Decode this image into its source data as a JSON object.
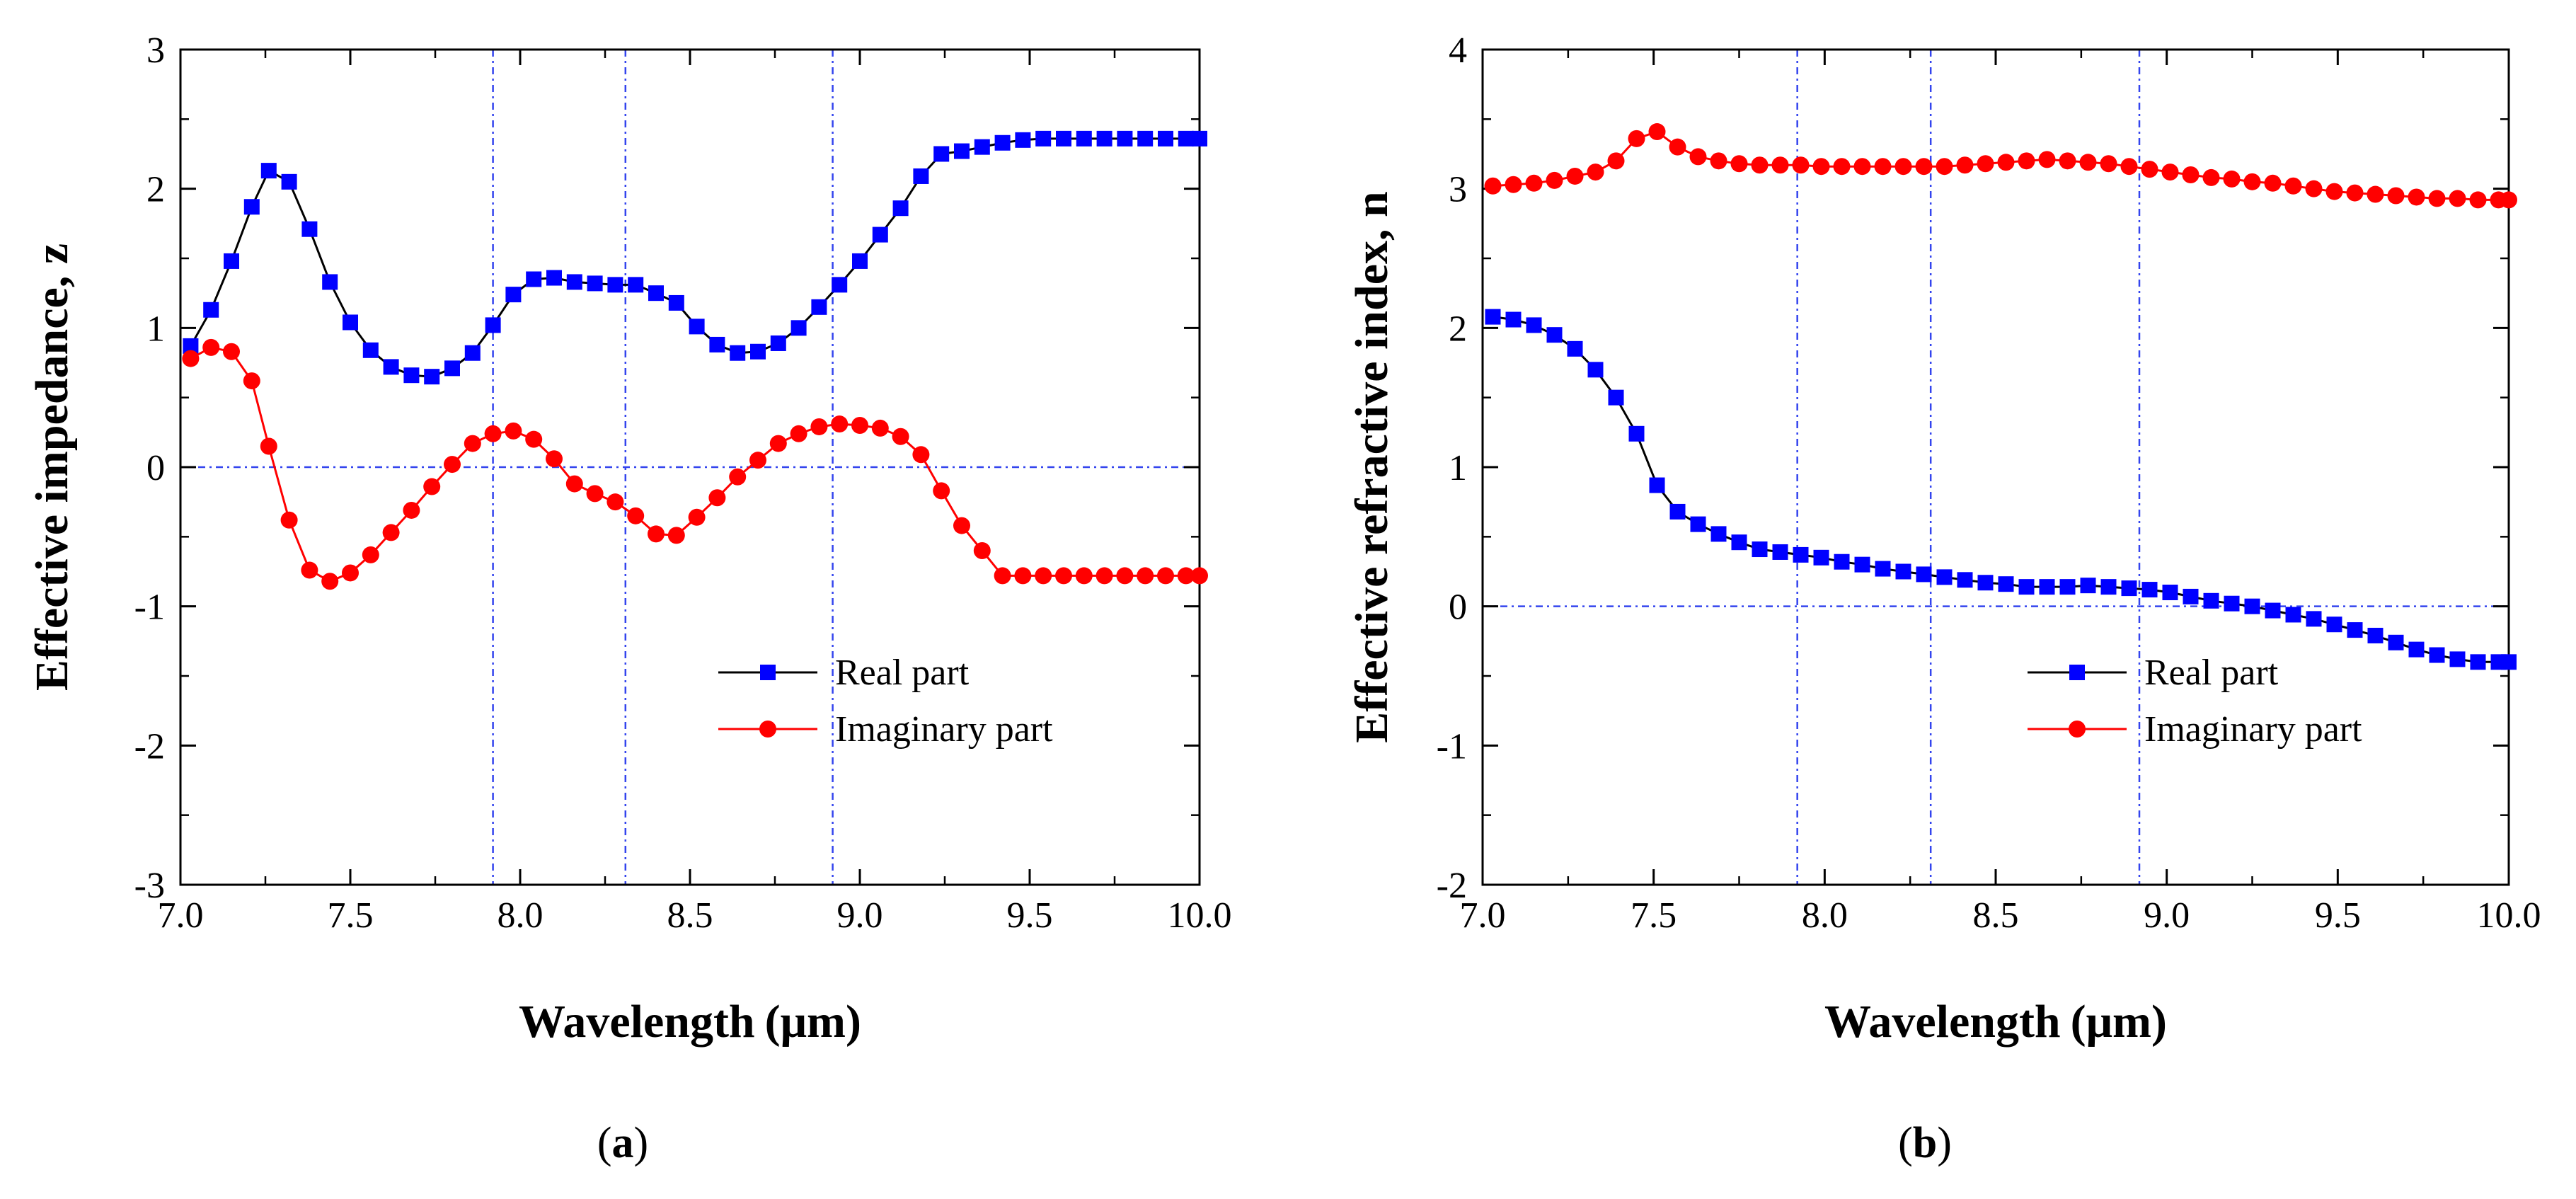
{
  "chart_data": [
    {
      "type": "line",
      "panel_label": "a",
      "xlabel_text": "Wavelength",
      "xlabel_unit": "(μm)",
      "ylabel": "Effective impedance, z",
      "xlim": [
        7.0,
        10.0
      ],
      "ylim": [
        -3,
        3
      ],
      "xticks": [
        "7.0",
        "7.5",
        "8.0",
        "8.5",
        "9.0",
        "9.5",
        "10.0"
      ],
      "xtick_values": [
        7.0,
        7.5,
        8.0,
        8.5,
        9.0,
        9.5,
        10.0
      ],
      "yticks": [
        "-3",
        "-2",
        "-1",
        "0",
        "1",
        "2",
        "3"
      ],
      "ytick_values": [
        -3,
        -2,
        -1,
        0,
        1,
        2,
        3
      ],
      "reference_vlines": [
        7.92,
        8.31,
        8.92
      ],
      "reference_hline": 0,
      "legend_position": "lower-right",
      "series": [
        {
          "name": "Real part",
          "color": "#0000ff",
          "line_color": "#000000",
          "marker": "square",
          "x": [
            7.03,
            7.09,
            7.15,
            7.21,
            7.26,
            7.32,
            7.38,
            7.44,
            7.5,
            7.56,
            7.62,
            7.68,
            7.74,
            7.8,
            7.86,
            7.92,
            7.98,
            8.04,
            8.1,
            8.16,
            8.22,
            8.28,
            8.34,
            8.4,
            8.46,
            8.52,
            8.58,
            8.64,
            8.7,
            8.76,
            8.82,
            8.88,
            8.94,
            9.0,
            9.06,
            9.12,
            9.18,
            9.24,
            9.3,
            9.36,
            9.42,
            9.48,
            9.54,
            9.6,
            9.66,
            9.72,
            9.78,
            9.84,
            9.9,
            9.96,
            10.0
          ],
          "y": [
            0.87,
            1.13,
            1.48,
            1.87,
            2.13,
            2.05,
            1.71,
            1.33,
            1.04,
            0.84,
            0.72,
            0.66,
            0.65,
            0.71,
            0.82,
            1.02,
            1.24,
            1.35,
            1.36,
            1.33,
            1.32,
            1.31,
            1.31,
            1.25,
            1.18,
            1.01,
            0.88,
            0.82,
            0.83,
            0.89,
            1.0,
            1.15,
            1.31,
            1.48,
            1.67,
            1.86,
            2.09,
            2.25,
            2.27,
            2.3,
            2.33,
            2.35,
            2.36,
            2.36,
            2.36,
            2.36,
            2.36,
            2.36,
            2.36,
            2.36,
            2.36
          ]
        },
        {
          "name": "Imaginary part",
          "color": "#ff0000",
          "line_color": "#ff0000",
          "marker": "circle",
          "x": [
            7.03,
            7.09,
            7.15,
            7.21,
            7.26,
            7.32,
            7.38,
            7.44,
            7.5,
            7.56,
            7.62,
            7.68,
            7.74,
            7.8,
            7.86,
            7.92,
            7.98,
            8.04,
            8.1,
            8.16,
            8.22,
            8.28,
            8.34,
            8.4,
            8.46,
            8.52,
            8.58,
            8.64,
            8.7,
            8.76,
            8.82,
            8.88,
            8.94,
            9.0,
            9.06,
            9.12,
            9.18,
            9.24,
            9.3,
            9.36,
            9.42,
            9.48,
            9.54,
            9.6,
            9.66,
            9.72,
            9.78,
            9.84,
            9.9,
            9.96,
            10.0
          ],
          "y": [
            0.78,
            0.86,
            0.83,
            0.62,
            0.15,
            -0.38,
            -0.74,
            -0.82,
            -0.76,
            -0.63,
            -0.47,
            -0.31,
            -0.14,
            0.02,
            0.17,
            0.24,
            0.26,
            0.2,
            0.06,
            -0.12,
            -0.19,
            -0.25,
            -0.35,
            -0.48,
            -0.49,
            -0.36,
            -0.22,
            -0.07,
            0.05,
            0.17,
            0.24,
            0.29,
            0.31,
            0.3,
            0.28,
            0.22,
            0.09,
            -0.17,
            -0.42,
            -0.6,
            -0.78,
            -0.78,
            -0.78,
            -0.78,
            -0.78,
            -0.78,
            -0.78,
            -0.78,
            -0.78,
            -0.78,
            -0.78
          ]
        }
      ]
    },
    {
      "type": "line",
      "panel_label": "b",
      "xlabel_text": "Wavelength",
      "xlabel_unit": "(μm)",
      "ylabel": "Effective refractive index, n",
      "xlim": [
        7.0,
        10.0
      ],
      "ylim": [
        -2,
        4
      ],
      "xticks": [
        "7.0",
        "7.5",
        "8.0",
        "8.5",
        "9.0",
        "9.5",
        "10.0"
      ],
      "xtick_values": [
        7.0,
        7.5,
        8.0,
        8.5,
        9.0,
        9.5,
        10.0
      ],
      "yticks": [
        "-2",
        "-1",
        "0",
        "1",
        "2",
        "3",
        "4"
      ],
      "ytick_values": [
        -2,
        -1,
        0,
        1,
        2,
        3,
        4
      ],
      "reference_vlines": [
        7.92,
        8.31,
        8.92
      ],
      "reference_hline": 0,
      "legend_position": "lower-right",
      "series": [
        {
          "name": "Real part",
          "color": "#0000ff",
          "line_color": "#000000",
          "marker": "square",
          "x": [
            7.03,
            7.09,
            7.15,
            7.21,
            7.27,
            7.33,
            7.39,
            7.45,
            7.51,
            7.57,
            7.63,
            7.69,
            7.75,
            7.81,
            7.87,
            7.93,
            7.99,
            8.05,
            8.11,
            8.17,
            8.23,
            8.29,
            8.35,
            8.41,
            8.47,
            8.53,
            8.59,
            8.65,
            8.71,
            8.77,
            8.83,
            8.89,
            8.95,
            9.01,
            9.07,
            9.13,
            9.19,
            9.25,
            9.31,
            9.37,
            9.43,
            9.49,
            9.55,
            9.61,
            9.67,
            9.73,
            9.79,
            9.85,
            9.91,
            9.97,
            10.0
          ],
          "y": [
            2.08,
            2.06,
            2.02,
            1.95,
            1.85,
            1.7,
            1.5,
            1.24,
            0.87,
            0.68,
            0.59,
            0.52,
            0.46,
            0.41,
            0.39,
            0.37,
            0.35,
            0.32,
            0.3,
            0.27,
            0.25,
            0.23,
            0.21,
            0.19,
            0.17,
            0.16,
            0.14,
            0.14,
            0.14,
            0.15,
            0.14,
            0.13,
            0.12,
            0.1,
            0.07,
            0.04,
            0.02,
            0.0,
            -0.03,
            -0.06,
            -0.09,
            -0.13,
            -0.17,
            -0.21,
            -0.26,
            -0.31,
            -0.35,
            -0.38,
            -0.4,
            -0.4,
            -0.4
          ]
        },
        {
          "name": "Imaginary part",
          "color": "#ff0000",
          "line_color": "#ff0000",
          "marker": "circle",
          "x": [
            7.03,
            7.09,
            7.15,
            7.21,
            7.27,
            7.33,
            7.39,
            7.45,
            7.51,
            7.57,
            7.63,
            7.69,
            7.75,
            7.81,
            7.87,
            7.93,
            7.99,
            8.05,
            8.11,
            8.17,
            8.23,
            8.29,
            8.35,
            8.41,
            8.47,
            8.53,
            8.59,
            8.65,
            8.71,
            8.77,
            8.83,
            8.89,
            8.95,
            9.01,
            9.07,
            9.13,
            9.19,
            9.25,
            9.31,
            9.37,
            9.43,
            9.49,
            9.55,
            9.61,
            9.67,
            9.73,
            9.79,
            9.85,
            9.91,
            9.97,
            10.0
          ],
          "y": [
            3.02,
            3.03,
            3.04,
            3.06,
            3.09,
            3.12,
            3.2,
            3.36,
            3.41,
            3.3,
            3.23,
            3.2,
            3.18,
            3.17,
            3.17,
            3.17,
            3.16,
            3.16,
            3.16,
            3.16,
            3.16,
            3.16,
            3.16,
            3.17,
            3.18,
            3.19,
            3.2,
            3.21,
            3.2,
            3.19,
            3.18,
            3.16,
            3.14,
            3.12,
            3.1,
            3.08,
            3.07,
            3.05,
            3.04,
            3.02,
            3.0,
            2.98,
            2.97,
            2.96,
            2.95,
            2.94,
            2.93,
            2.93,
            2.92,
            2.92,
            2.92
          ]
        }
      ]
    }
  ]
}
